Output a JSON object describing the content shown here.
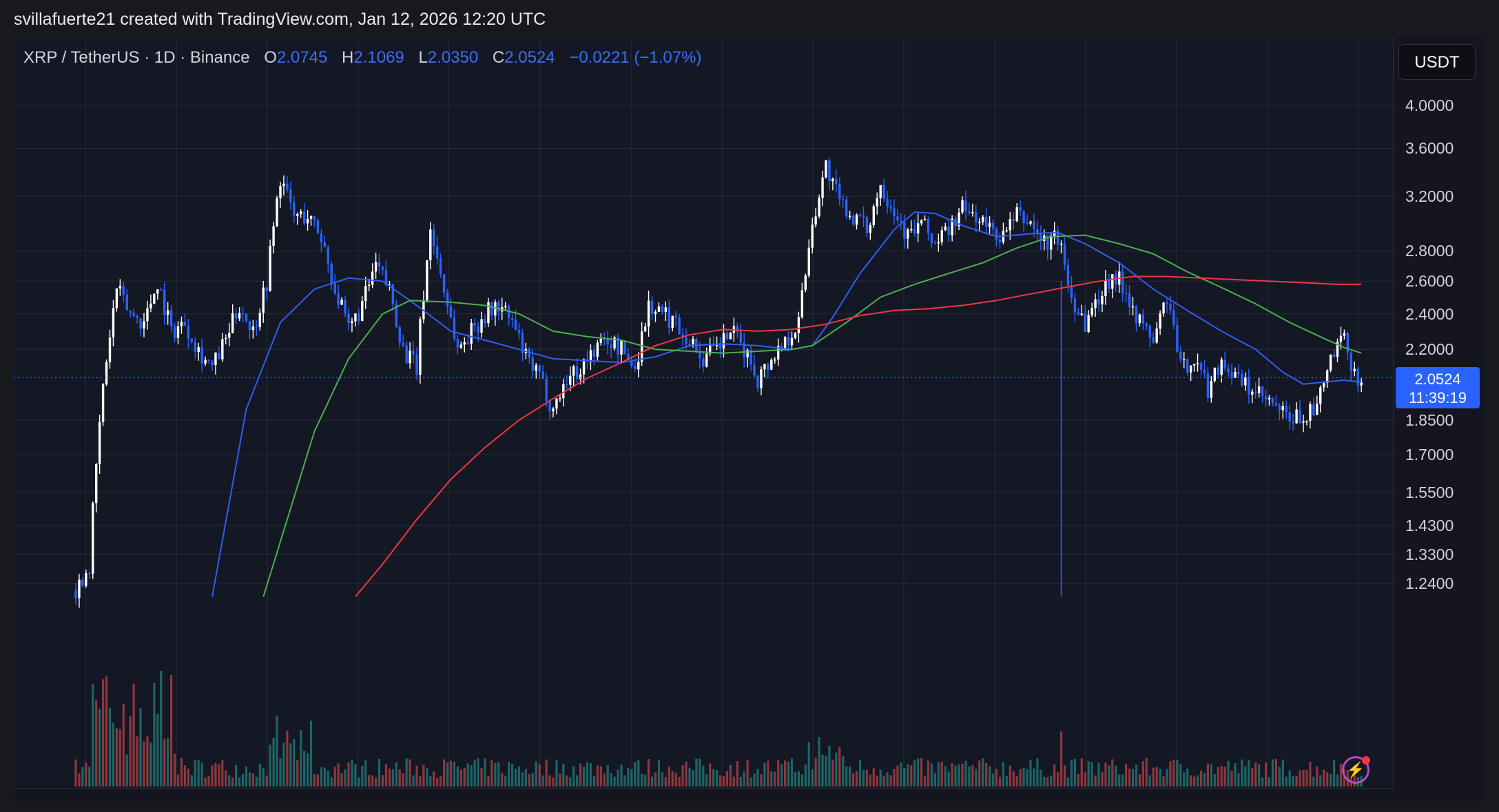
{
  "credit": "svillafuerte21 created with TradingView.com, Jan 12, 2026 12:20 UTC",
  "legend": {
    "symbol": "XRP / TetherUS · 1D · Binance",
    "open_label": "O",
    "open": "2.0745",
    "high_label": "H",
    "high": "2.1069",
    "low_label": "L",
    "low": "2.0350",
    "close_label": "C",
    "close": "2.0524",
    "change": "−0.0221 (−1.07%)"
  },
  "unit_button": "USDT",
  "price_badge": {
    "price": "2.0524",
    "countdown": "11:39:19"
  },
  "icons": {
    "flash": "lightning-bolt-icon"
  },
  "colors": {
    "background": "#141724",
    "grid": "#2a2e39",
    "candle_up": "#ffffff",
    "candle_down": "#2962ff",
    "ma_short": "#2f5ef5",
    "ma_mid": "#4caf50",
    "ma_long": "#f23645",
    "volume_up": "#26a69a",
    "volume_down": "#ef5350",
    "accent": "#2962ff"
  },
  "chart_data": {
    "type": "candlestick",
    "scale": "log",
    "ylim": [
      1.2,
      4.2
    ],
    "y_ticks": [
      "4.0000",
      "3.6000",
      "3.2000",
      "2.8000",
      "2.6000",
      "2.4000",
      "2.2000",
      "1.8500",
      "1.7000",
      "1.5500",
      "1.4300",
      "1.3300",
      "1.2400"
    ],
    "y_tick_values": [
      4.0,
      3.6,
      3.2,
      2.8,
      2.6,
      2.4,
      2.2,
      1.85,
      1.7,
      1.55,
      1.43,
      1.33,
      1.24
    ],
    "grid": true,
    "num_days": 410,
    "last_close": 2.0524,
    "price_path": [
      [
        0,
        1.22
      ],
      [
        4,
        1.3
      ],
      [
        8,
        2.0
      ],
      [
        12,
        2.55
      ],
      [
        16,
        2.4
      ],
      [
        20,
        2.35
      ],
      [
        24,
        2.6
      ],
      [
        28,
        2.3
      ],
      [
        32,
        2.35
      ],
      [
        36,
        2.2
      ],
      [
        40,
        2.1
      ],
      [
        44,
        2.25
      ],
      [
        48,
        2.45
      ],
      [
        52,
        2.3
      ],
      [
        56,
        2.6
      ],
      [
        60,
        3.35
      ],
      [
        64,
        3.05
      ],
      [
        68,
        3.05
      ],
      [
        72,
        2.9
      ],
      [
        76,
        2.55
      ],
      [
        80,
        2.3
      ],
      [
        84,
        2.45
      ],
      [
        88,
        2.7
      ],
      [
        92,
        2.55
      ],
      [
        96,
        2.2
      ],
      [
        100,
        2.1
      ],
      [
        104,
        2.95
      ],
      [
        108,
        2.55
      ],
      [
        112,
        2.2
      ],
      [
        116,
        2.3
      ],
      [
        120,
        2.4
      ],
      [
        124,
        2.45
      ],
      [
        128,
        2.35
      ],
      [
        132,
        2.15
      ],
      [
        136,
        2.05
      ],
      [
        140,
        1.9
      ],
      [
        144,
        2.05
      ],
      [
        148,
        2.1
      ],
      [
        152,
        2.2
      ],
      [
        156,
        2.25
      ],
      [
        160,
        2.2
      ],
      [
        164,
        2.1
      ],
      [
        168,
        2.45
      ],
      [
        172,
        2.4
      ],
      [
        176,
        2.35
      ],
      [
        180,
        2.25
      ],
      [
        184,
        2.15
      ],
      [
        188,
        2.2
      ],
      [
        192,
        2.3
      ],
      [
        196,
        2.2
      ],
      [
        200,
        2.05
      ],
      [
        204,
        2.15
      ],
      [
        208,
        2.25
      ],
      [
        212,
        2.35
      ],
      [
        216,
        3.0
      ],
      [
        220,
        3.45
      ],
      [
        224,
        3.15
      ],
      [
        228,
        3.05
      ],
      [
        232,
        2.95
      ],
      [
        236,
        3.3
      ],
      [
        240,
        3.1
      ],
      [
        244,
        2.9
      ],
      [
        248,
        3.0
      ],
      [
        252,
        2.85
      ],
      [
        256,
        2.95
      ],
      [
        260,
        3.1
      ],
      [
        264,
        3.05
      ],
      [
        268,
        2.95
      ],
      [
        272,
        2.9
      ],
      [
        276,
        3.05
      ],
      [
        280,
        3.0
      ],
      [
        284,
        2.85
      ],
      [
        288,
        2.9
      ],
      [
        292,
        2.5
      ],
      [
        296,
        2.35
      ],
      [
        300,
        2.5
      ],
      [
        304,
        2.65
      ],
      [
        308,
        2.55
      ],
      [
        312,
        2.35
      ],
      [
        316,
        2.25
      ],
      [
        320,
        2.5
      ],
      [
        324,
        2.1
      ],
      [
        328,
        2.15
      ],
      [
        332,
        2.0
      ],
      [
        336,
        2.15
      ],
      [
        340,
        2.05
      ],
      [
        344,
        2.0
      ],
      [
        348,
        1.95
      ],
      [
        352,
        1.9
      ],
      [
        356,
        1.85
      ],
      [
        360,
        1.87
      ],
      [
        364,
        1.9
      ],
      [
        368,
        2.15
      ],
      [
        372,
        2.25
      ],
      [
        375,
        2.07
      ],
      [
        377,
        2.05
      ]
    ],
    "moving_averages": [
      {
        "color_key": "ma_short",
        "points": [
          [
            40,
            1.2
          ],
          [
            50,
            1.9
          ],
          [
            60,
            2.35
          ],
          [
            70,
            2.55
          ],
          [
            80,
            2.62
          ],
          [
            90,
            2.6
          ],
          [
            100,
            2.45
          ],
          [
            110,
            2.3
          ],
          [
            120,
            2.25
          ],
          [
            130,
            2.2
          ],
          [
            140,
            2.15
          ],
          [
            150,
            2.14
          ],
          [
            160,
            2.13
          ],
          [
            170,
            2.16
          ],
          [
            180,
            2.22
          ],
          [
            190,
            2.23
          ],
          [
            200,
            2.22
          ],
          [
            210,
            2.2
          ],
          [
            216,
            2.22
          ],
          [
            222,
            2.38
          ],
          [
            230,
            2.65
          ],
          [
            240,
            2.95
          ],
          [
            246,
            3.08
          ],
          [
            252,
            3.07
          ],
          [
            260,
            2.98
          ],
          [
            270,
            2.9
          ],
          [
            280,
            2.92
          ],
          [
            288,
            2.93
          ],
          [
            296,
            2.85
          ],
          [
            306,
            2.72
          ],
          [
            316,
            2.55
          ],
          [
            326,
            2.42
          ],
          [
            336,
            2.3
          ],
          [
            346,
            2.2
          ],
          [
            354,
            2.08
          ],
          [
            360,
            2.02
          ],
          [
            366,
            2.03
          ],
          [
            372,
            2.04
          ],
          [
            377,
            2.03
          ]
        ]
      },
      {
        "color_key": "ma_mid",
        "points": [
          [
            55,
            1.2
          ],
          [
            62,
            1.45
          ],
          [
            70,
            1.8
          ],
          [
            80,
            2.15
          ],
          [
            90,
            2.4
          ],
          [
            98,
            2.48
          ],
          [
            110,
            2.47
          ],
          [
            120,
            2.45
          ],
          [
            130,
            2.4
          ],
          [
            140,
            2.3
          ],
          [
            150,
            2.27
          ],
          [
            160,
            2.25
          ],
          [
            170,
            2.2
          ],
          [
            180,
            2.19
          ],
          [
            190,
            2.18
          ],
          [
            200,
            2.19
          ],
          [
            210,
            2.2
          ],
          [
            216,
            2.22
          ],
          [
            226,
            2.35
          ],
          [
            236,
            2.5
          ],
          [
            246,
            2.58
          ],
          [
            256,
            2.65
          ],
          [
            266,
            2.72
          ],
          [
            276,
            2.82
          ],
          [
            286,
            2.9
          ],
          [
            296,
            2.91
          ],
          [
            306,
            2.85
          ],
          [
            316,
            2.78
          ],
          [
            326,
            2.66
          ],
          [
            336,
            2.56
          ],
          [
            346,
            2.46
          ],
          [
            356,
            2.35
          ],
          [
            366,
            2.26
          ],
          [
            372,
            2.21
          ],
          [
            377,
            2.18
          ]
        ]
      },
      {
        "color_key": "ma_long",
        "points": [
          [
            82,
            1.2
          ],
          [
            90,
            1.3
          ],
          [
            100,
            1.45
          ],
          [
            110,
            1.6
          ],
          [
            120,
            1.73
          ],
          [
            130,
            1.85
          ],
          [
            140,
            1.95
          ],
          [
            150,
            2.05
          ],
          [
            160,
            2.13
          ],
          [
            170,
            2.22
          ],
          [
            180,
            2.28
          ],
          [
            190,
            2.31
          ],
          [
            200,
            2.3
          ],
          [
            210,
            2.31
          ],
          [
            220,
            2.34
          ],
          [
            230,
            2.39
          ],
          [
            240,
            2.42
          ],
          [
            250,
            2.43
          ],
          [
            260,
            2.45
          ],
          [
            270,
            2.48
          ],
          [
            280,
            2.52
          ],
          [
            290,
            2.56
          ],
          [
            300,
            2.6
          ],
          [
            310,
            2.63
          ],
          [
            320,
            2.63
          ],
          [
            330,
            2.62
          ],
          [
            340,
            2.61
          ],
          [
            350,
            2.6
          ],
          [
            360,
            2.59
          ],
          [
            370,
            2.58
          ],
          [
            377,
            2.58
          ]
        ]
      }
    ],
    "volume_max": 100
  }
}
